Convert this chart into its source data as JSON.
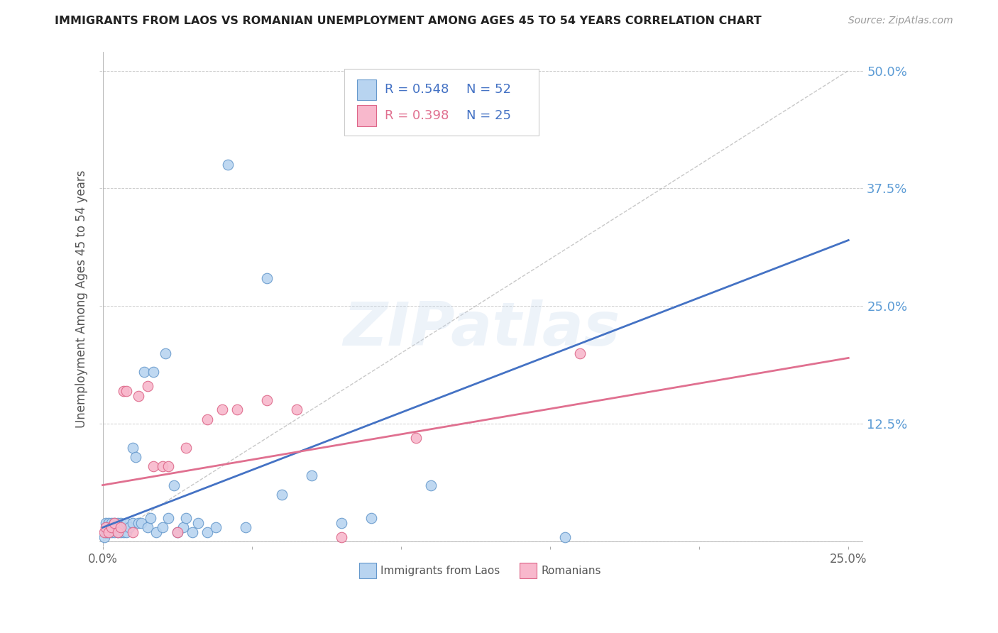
{
  "title": "IMMIGRANTS FROM LAOS VS ROMANIAN UNEMPLOYMENT AMONG AGES 45 TO 54 YEARS CORRELATION CHART",
  "source": "Source: ZipAtlas.com",
  "ylabel": "Unemployment Among Ages 45 to 54 years",
  "ylim": [
    -0.005,
    0.52
  ],
  "xlim": [
    -0.001,
    0.255
  ],
  "ylabel_ticks": [
    0.0,
    0.125,
    0.25,
    0.375,
    0.5
  ],
  "ylabel_tick_labels": [
    "",
    "12.5%",
    "25.0%",
    "37.5%",
    "50.0%"
  ],
  "title_color": "#222222",
  "source_color": "#999999",
  "ylabel_color": "#555555",
  "ytick_color": "#5B9BD5",
  "grid_color": "#cccccc",
  "diagonal_color": "#bbbbbb",
  "laos_color": "#b8d4f0",
  "laos_edge_color": "#6699cc",
  "romanian_color": "#f8b8cc",
  "romanian_edge_color": "#dd6688",
  "laos_line_color": "#4472C4",
  "romanian_line_color": "#E07090",
  "legend_laos_R": "0.548",
  "legend_laos_N": "52",
  "legend_romanian_R": "0.398",
  "legend_romanian_N": "25",
  "laos_x": [
    0.0005,
    0.001,
    0.001,
    0.0015,
    0.002,
    0.002,
    0.003,
    0.003,
    0.003,
    0.004,
    0.004,
    0.005,
    0.005,
    0.005,
    0.006,
    0.006,
    0.006,
    0.007,
    0.007,
    0.008,
    0.008,
    0.009,
    0.01,
    0.01,
    0.011,
    0.012,
    0.013,
    0.014,
    0.015,
    0.016,
    0.017,
    0.018,
    0.02,
    0.021,
    0.022,
    0.024,
    0.025,
    0.027,
    0.028,
    0.03,
    0.032,
    0.035,
    0.038,
    0.042,
    0.048,
    0.055,
    0.06,
    0.07,
    0.08,
    0.09,
    0.11,
    0.155
  ],
  "laos_y": [
    0.005,
    0.01,
    0.02,
    0.01,
    0.015,
    0.02,
    0.01,
    0.015,
    0.02,
    0.01,
    0.02,
    0.01,
    0.015,
    0.02,
    0.01,
    0.015,
    0.02,
    0.01,
    0.015,
    0.01,
    0.02,
    0.015,
    0.1,
    0.02,
    0.09,
    0.02,
    0.02,
    0.18,
    0.015,
    0.025,
    0.18,
    0.01,
    0.015,
    0.2,
    0.025,
    0.06,
    0.01,
    0.015,
    0.025,
    0.01,
    0.02,
    0.01,
    0.015,
    0.4,
    0.015,
    0.28,
    0.05,
    0.07,
    0.02,
    0.025,
    0.06,
    0.005
  ],
  "romanian_x": [
    0.0005,
    0.001,
    0.002,
    0.003,
    0.004,
    0.005,
    0.006,
    0.007,
    0.008,
    0.01,
    0.012,
    0.015,
    0.017,
    0.02,
    0.022,
    0.025,
    0.028,
    0.035,
    0.04,
    0.045,
    0.055,
    0.065,
    0.08,
    0.105,
    0.16
  ],
  "romanian_y": [
    0.01,
    0.015,
    0.01,
    0.015,
    0.02,
    0.01,
    0.015,
    0.16,
    0.16,
    0.01,
    0.155,
    0.165,
    0.08,
    0.08,
    0.08,
    0.01,
    0.1,
    0.13,
    0.14,
    0.14,
    0.15,
    0.14,
    0.005,
    0.11,
    0.2
  ],
  "laos_line_x": [
    0.0,
    0.25
  ],
  "laos_line_y": [
    0.015,
    0.32
  ],
  "romanian_line_x": [
    0.0,
    0.25
  ],
  "romanian_line_y": [
    0.06,
    0.195
  ],
  "watermark": "ZIPatlas",
  "background_color": "#ffffff"
}
